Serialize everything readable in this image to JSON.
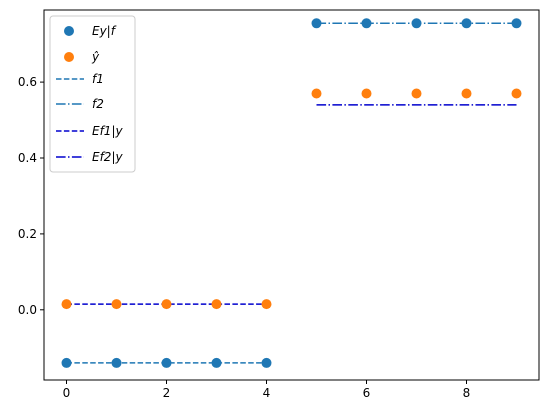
{
  "chart_data": {
    "type": "scatter",
    "xlim": [
      -0.45,
      9.45
    ],
    "ylim": [
      -0.185,
      0.79
    ],
    "x_ticks": [
      0,
      2,
      4,
      6,
      8
    ],
    "y_ticks": [
      0.0,
      0.2,
      0.4,
      0.6
    ],
    "x_tick_labels": [
      "0",
      "2",
      "4",
      "6",
      "8"
    ],
    "y_tick_labels": [
      "0.0",
      "0.2",
      "0.4",
      "0.6"
    ],
    "grid": false,
    "legend_position": "top-left",
    "series": [
      {
        "name": "Ey|f",
        "kind": "scatter",
        "color": "#1f77b4",
        "x": [
          0,
          1,
          2,
          3,
          4,
          5,
          6,
          7,
          8,
          9
        ],
        "y": [
          -0.14,
          -0.14,
          -0.14,
          -0.14,
          -0.14,
          0.755,
          0.755,
          0.755,
          0.755,
          0.755
        ]
      },
      {
        "name": "ŷ",
        "kind": "scatter",
        "color": "#ff7f0e",
        "x": [
          0,
          1,
          2,
          3,
          4,
          5,
          6,
          7,
          8,
          9
        ],
        "y": [
          0.015,
          0.015,
          0.015,
          0.015,
          0.015,
          0.57,
          0.57,
          0.57,
          0.57,
          0.57
        ]
      },
      {
        "name": "f1",
        "kind": "line",
        "color": "#1f77b4",
        "dash": "dashed",
        "x": [
          0,
          1,
          2,
          3,
          4
        ],
        "y": [
          -0.14,
          -0.14,
          -0.14,
          -0.14,
          -0.14
        ]
      },
      {
        "name": "f2",
        "kind": "line",
        "color": "#1f77b4",
        "dash": "dashdot",
        "x": [
          5,
          6,
          7,
          8,
          9
        ],
        "y": [
          0.755,
          0.755,
          0.755,
          0.755,
          0.755
        ]
      },
      {
        "name": "Ef1|y",
        "kind": "line",
        "color": "#0000cd",
        "dash": "dashed",
        "x": [
          0,
          1,
          2,
          3,
          4
        ],
        "y": [
          0.015,
          0.015,
          0.015,
          0.015,
          0.015
        ]
      },
      {
        "name": "Ef2|y",
        "kind": "line",
        "color": "#0000cd",
        "dash": "dashdot",
        "x": [
          5,
          6,
          7,
          8,
          9
        ],
        "y": [
          0.54,
          0.54,
          0.54,
          0.54,
          0.54
        ]
      }
    ]
  }
}
